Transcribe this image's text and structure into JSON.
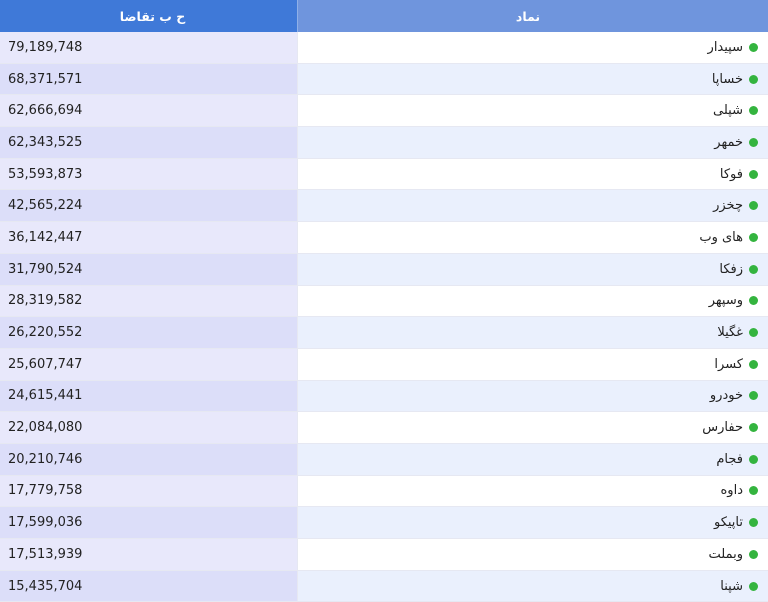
{
  "colors": {
    "header_symbol_bg": "#6f95dd",
    "header_value_bg": "#3f79d8",
    "status_dot": "#34b43f"
  },
  "header": {
    "symbol_label": "نماد",
    "value_label": "ح ب تقاضا"
  },
  "rows": [
    {
      "symbol": "سپیدار",
      "value": "79,189,748",
      "status_icon": "green-dot-icon"
    },
    {
      "symbol": "خساپا",
      "value": "68,371,571",
      "status_icon": "green-dot-icon"
    },
    {
      "symbol": "شپلی",
      "value": "62,666,694",
      "status_icon": "green-dot-icon"
    },
    {
      "symbol": "خمهر",
      "value": "62,343,525",
      "status_icon": "green-dot-icon"
    },
    {
      "symbol": "فوکا",
      "value": "53,593,873",
      "status_icon": "green-dot-icon"
    },
    {
      "symbol": "چخزر",
      "value": "42,565,224",
      "status_icon": "green-dot-icon"
    },
    {
      "symbol": "های وب",
      "value": "36,142,447",
      "status_icon": "green-dot-icon"
    },
    {
      "symbol": "زفکا",
      "value": "31,790,524",
      "status_icon": "green-dot-icon"
    },
    {
      "symbol": "وسپهر",
      "value": "28,319,582",
      "status_icon": "green-dot-icon"
    },
    {
      "symbol": "غگیلا",
      "value": "26,220,552",
      "status_icon": "green-dot-icon"
    },
    {
      "symbol": "کسرا",
      "value": "25,607,747",
      "status_icon": "green-dot-icon"
    },
    {
      "symbol": "خودرو",
      "value": "24,615,441",
      "status_icon": "green-dot-icon"
    },
    {
      "symbol": "حفارس",
      "value": "22,084,080",
      "status_icon": "green-dot-icon"
    },
    {
      "symbol": "فجام",
      "value": "20,210,746",
      "status_icon": "green-dot-icon"
    },
    {
      "symbol": "داوه",
      "value": "17,779,758",
      "status_icon": "green-dot-icon"
    },
    {
      "symbol": "تاپیکو",
      "value": "17,599,036",
      "status_icon": "green-dot-icon"
    },
    {
      "symbol": "وبملت",
      "value": "17,513,939",
      "status_icon": "green-dot-icon"
    },
    {
      "symbol": "شپنا",
      "value": "15,435,704",
      "status_icon": "green-dot-icon"
    }
  ]
}
